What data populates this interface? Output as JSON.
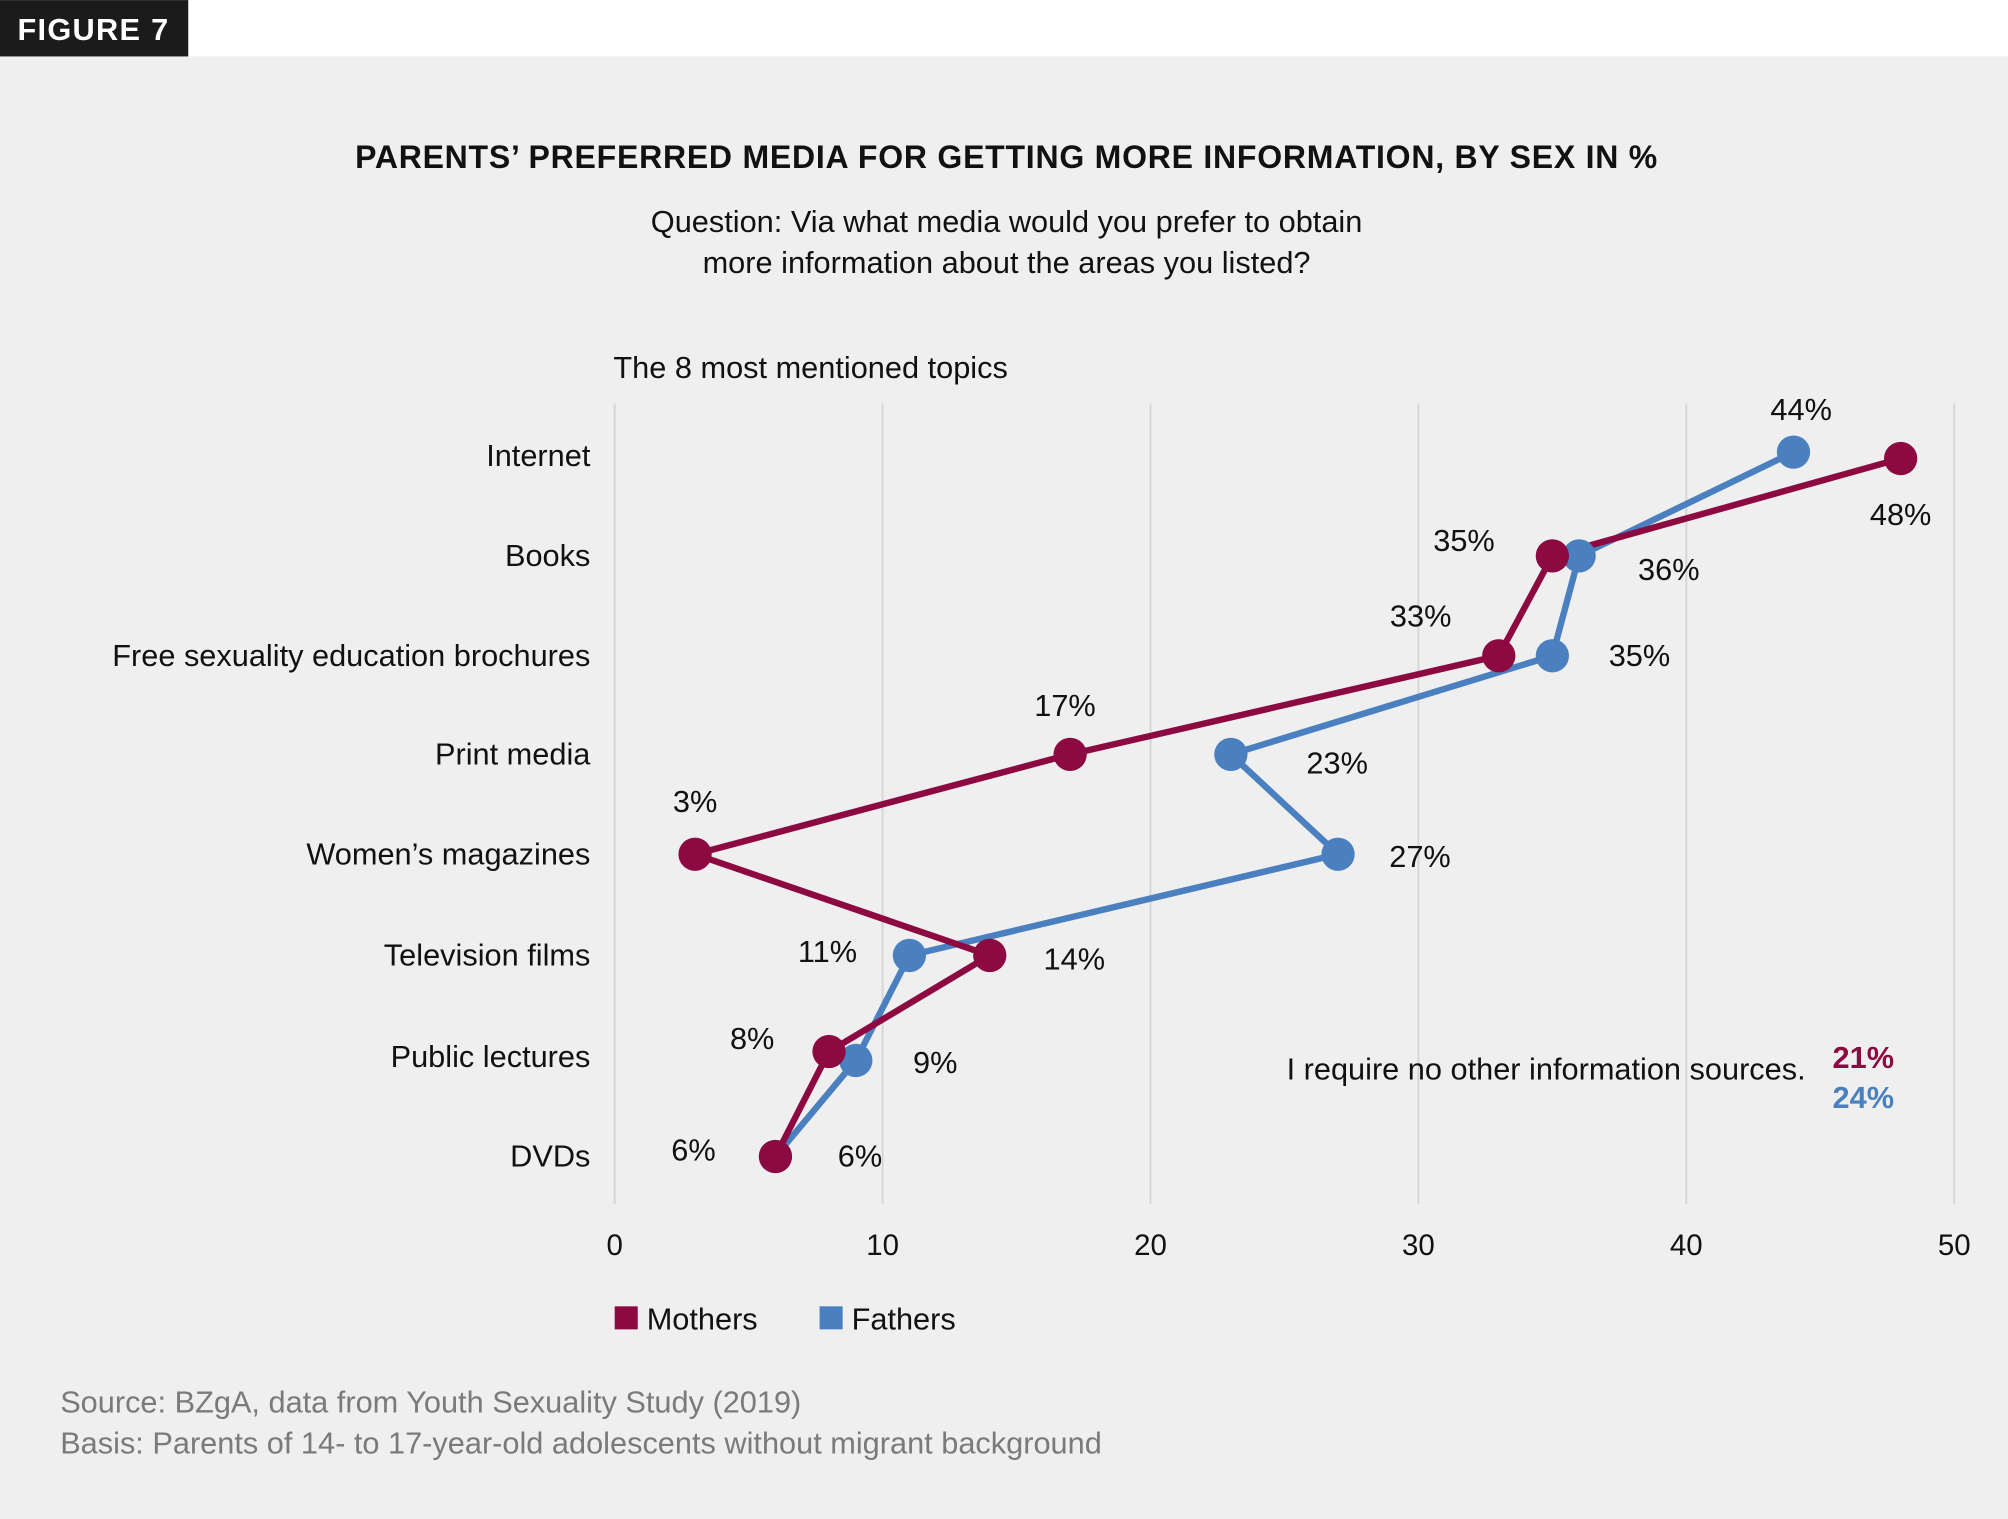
{
  "figure_label": "FIGURE 7",
  "colors": {
    "mothers": "#8c0a41",
    "fathers": "#4a80c0",
    "background": "#efefef",
    "grid": "#d6d6d6"
  },
  "chart_data": {
    "type": "line",
    "title": "PARENTS’ PREFERRED MEDIA FOR GETTING MORE INFORMATION, BY SEX IN %",
    "subtitle_lines": [
      "Question: Via what media would you prefer to obtain",
      "more information about the areas you listed?"
    ],
    "category_header": "The 8 most mentioned topics",
    "orientation": "horizontal",
    "categories": [
      "Internet",
      "Books",
      "Free sexuality education brochures",
      "Print media",
      "Women’s magazines",
      "Television films",
      "Public lectures",
      "DVDs"
    ],
    "series": [
      {
        "name": "Mothers",
        "values": [
          48,
          35,
          33,
          17,
          3,
          14,
          8,
          6
        ],
        "labels": [
          "48%",
          "35%",
          "33%",
          "17%",
          "3%",
          "14%",
          "8%",
          "6%"
        ]
      },
      {
        "name": "Fathers",
        "values": [
          44,
          36,
          35,
          23,
          27,
          11,
          9,
          6
        ],
        "labels": [
          "44%",
          "36%",
          "35%",
          "23%",
          "27%",
          "11%",
          "9%",
          "6%"
        ]
      }
    ],
    "xlim": [
      0,
      50
    ],
    "xticks": [
      "0",
      "10",
      "20",
      "30",
      "40",
      "50"
    ],
    "grid": "vertical",
    "legend_placement": "bottom-left",
    "annotation": {
      "text": "I require no other information sources.",
      "mothers": "21%",
      "fathers": "24%"
    }
  },
  "footer": {
    "source": "Source: BZgA, data from Youth Sexuality Study (2019)",
    "basis": "Basis: Parents of 14- to 17-year-old adolescents without migrant background"
  }
}
